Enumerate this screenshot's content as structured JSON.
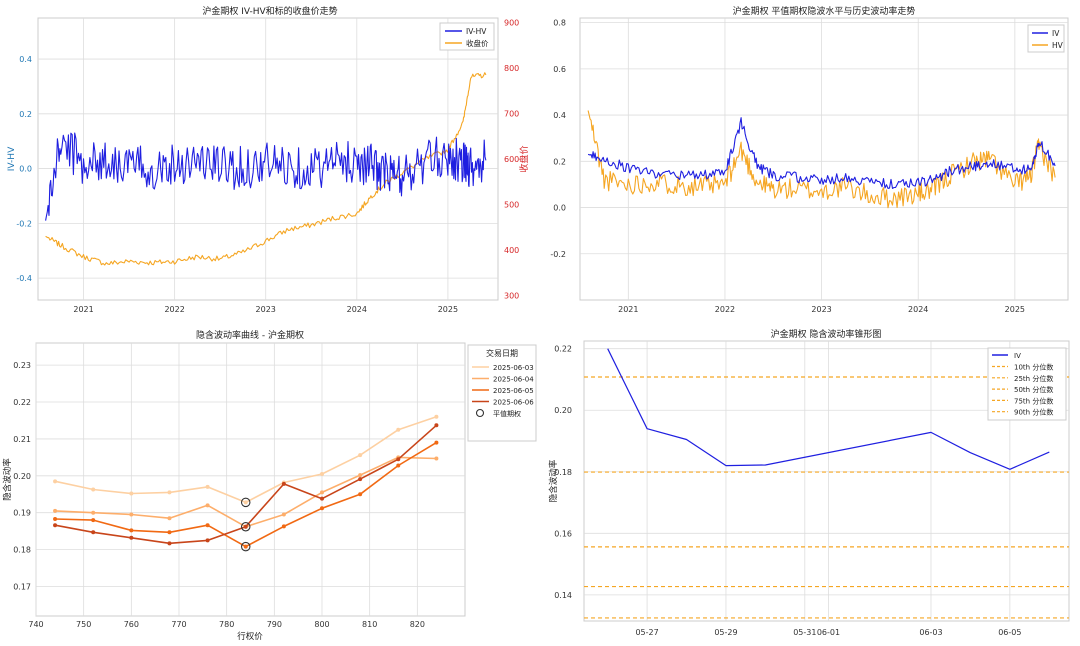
{
  "chart_data": [
    {
      "type": "line",
      "title": "沪金期权 IV-HV和标的收盘价走势",
      "ylabel": "IV-HV",
      "y2label": "收盘价",
      "xticks": [
        "2021",
        "2022",
        "2023",
        "2024",
        "2025"
      ],
      "ylim": [
        -0.48,
        0.55
      ],
      "yticks": [
        -0.4,
        -0.2,
        0.0,
        0.2,
        0.4
      ],
      "y2lim": [
        290,
        910
      ],
      "y2ticks": [
        300,
        400,
        500,
        600,
        700,
        800,
        900
      ],
      "x": [
        "2020-08",
        "2020-10",
        "2021-01",
        "2021-04",
        "2021-07",
        "2021-10",
        "2022-01",
        "2022-04",
        "2022-07",
        "2022-10",
        "2023-01",
        "2023-04",
        "2023-07",
        "2023-10",
        "2024-01",
        "2024-03",
        "2024-05",
        "2024-07",
        "2024-10",
        "2025-01",
        "2025-03",
        "2025-04",
        "2025-06"
      ],
      "series": [
        {
          "name": "IV-HV",
          "color": "#1f1fe0",
          "axis": "left",
          "values": [
            -0.19,
            0.1,
            0.02,
            0.03,
            0.01,
            0.0,
            0.02,
            0.03,
            0.01,
            0.0,
            0.02,
            0.01,
            0.0,
            0.02,
            0.03,
            0.01,
            -0.02,
            -0.03,
            0.02,
            0.05,
            0.02,
            0.01,
            0.03
          ]
        },
        {
          "name": "收盘价",
          "color": "#f5a623",
          "axis": "right",
          "values": [
            430,
            410,
            385,
            370,
            375,
            372,
            375,
            385,
            380,
            395,
            420,
            445,
            455,
            470,
            480,
            520,
            550,
            570,
            600,
            620,
            680,
            780,
            785
          ]
        }
      ],
      "legend": "top-right",
      "grid": true
    },
    {
      "type": "line",
      "title": "沪金期权 平值期权隐波水平与历史波动率走势",
      "xticks": [
        "2021",
        "2022",
        "2023",
        "2024",
        "2025"
      ],
      "ylim": [
        -0.4,
        0.82
      ],
      "yticks": [
        -0.2,
        0.0,
        0.2,
        0.4,
        0.6,
        0.8
      ],
      "x": [
        "2020-08",
        "2020-10",
        "2021-01",
        "2021-04",
        "2021-07",
        "2021-10",
        "2022-01",
        "2022-03",
        "2022-05",
        "2022-07",
        "2022-10",
        "2023-01",
        "2023-04",
        "2023-07",
        "2023-10",
        "2024-01",
        "2024-03",
        "2024-05",
        "2024-08",
        "2024-10",
        "2025-01",
        "2025-03",
        "2025-04",
        "2025-06"
      ],
      "series": [
        {
          "name": "IV",
          "color": "#1f1fe0",
          "values": [
            0.23,
            0.21,
            0.17,
            0.15,
            0.14,
            0.14,
            0.15,
            0.37,
            0.18,
            0.14,
            0.13,
            0.12,
            0.13,
            0.11,
            0.1,
            0.11,
            0.12,
            0.16,
            0.18,
            0.19,
            0.17,
            0.16,
            0.29,
            0.18
          ]
        },
        {
          "name": "HV",
          "color": "#f5a623",
          "values": [
            0.42,
            0.12,
            0.1,
            0.11,
            0.1,
            0.09,
            0.1,
            0.25,
            0.11,
            0.08,
            0.08,
            0.07,
            0.09,
            0.05,
            0.04,
            0.06,
            0.08,
            0.14,
            0.2,
            0.21,
            0.1,
            0.14,
            0.27,
            0.13
          ]
        }
      ],
      "legend": "top-right",
      "grid": true
    },
    {
      "type": "line",
      "title": "隐含波动率曲线 - 沪金期权",
      "xlabel": "行权价",
      "ylabel": "隐含波动率",
      "xlim": [
        740,
        830
      ],
      "xticks": [
        740,
        750,
        760,
        770,
        780,
        790,
        800,
        810,
        820
      ],
      "ylim": [
        0.162,
        0.236
      ],
      "yticks": [
        0.17,
        0.18,
        0.19,
        0.2,
        0.21,
        0.22,
        0.23
      ],
      "legend_title": "交易日期",
      "atm_label": "平值期权",
      "x": [
        744,
        752,
        760,
        768,
        776,
        784,
        792,
        800,
        808,
        816,
        824
      ],
      "series": [
        {
          "name": "2025-06-03",
          "color": "#fdd0a2",
          "values": [
            0.1985,
            0.1963,
            0.1952,
            0.1955,
            0.197,
            0.1928,
            0.1982,
            0.2005,
            0.2056,
            0.2125,
            0.216
          ]
        },
        {
          "name": "2025-06-04",
          "color": "#fdae6b",
          "values": [
            0.1905,
            0.19,
            0.1895,
            0.1885,
            0.192,
            0.1862,
            0.1895,
            0.1955,
            0.2002,
            0.205,
            0.2047
          ]
        },
        {
          "name": "2025-06-05",
          "color": "#f16913",
          "values": [
            0.1883,
            0.188,
            0.1852,
            0.1847,
            0.1866,
            0.1808,
            0.1863,
            0.1912,
            0.195,
            0.2028,
            0.209
          ]
        },
        {
          "name": "2025-06-06",
          "color": "#c8451a",
          "values": [
            0.1866,
            0.1847,
            0.1832,
            0.1817,
            0.1825,
            0.1862,
            0.1978,
            0.1938,
            0.1991,
            0.2045,
            0.2137
          ]
        }
      ],
      "atm_points": [
        {
          "x": 784,
          "y": 0.1928
        },
        {
          "x": 784,
          "y": 0.1862
        },
        {
          "x": 784,
          "y": 0.1808
        }
      ],
      "legend": "top-right",
      "grid": true
    },
    {
      "type": "line",
      "title": "沪金期权 隐含波动率锥形图",
      "ylabel": "隐含波动率",
      "ylim": [
        0.1315,
        0.2225
      ],
      "yticks": [
        0.14,
        0.16,
        0.18,
        0.2,
        0.22
      ],
      "xticks": [
        "05-27",
        "05-29",
        "05-31",
        "06-01",
        "06-03",
        "06-05"
      ],
      "x": [
        "05-26",
        "05-27",
        "05-28",
        "05-29",
        "05-30",
        "06-03",
        "06-04",
        "06-05",
        "06-06"
      ],
      "series": [
        {
          "name": "IV",
          "color": "#1f1fe0",
          "values": [
            0.22,
            0.194,
            0.1905,
            0.182,
            0.1822,
            0.1928,
            0.1862,
            0.1808,
            0.1864
          ]
        }
      ],
      "percentiles": [
        {
          "name": "10th 分位数",
          "value": 0.1325
        },
        {
          "name": "25th 分位数",
          "value": 0.1427
        },
        {
          "name": "50th 分位数",
          "value": 0.1556
        },
        {
          "name": "75th 分位数",
          "value": 0.1799
        },
        {
          "name": "90th 分位数",
          "value": 0.2108
        }
      ],
      "percentile_color": "#f5a623",
      "legend": "top-right",
      "grid": true
    }
  ]
}
